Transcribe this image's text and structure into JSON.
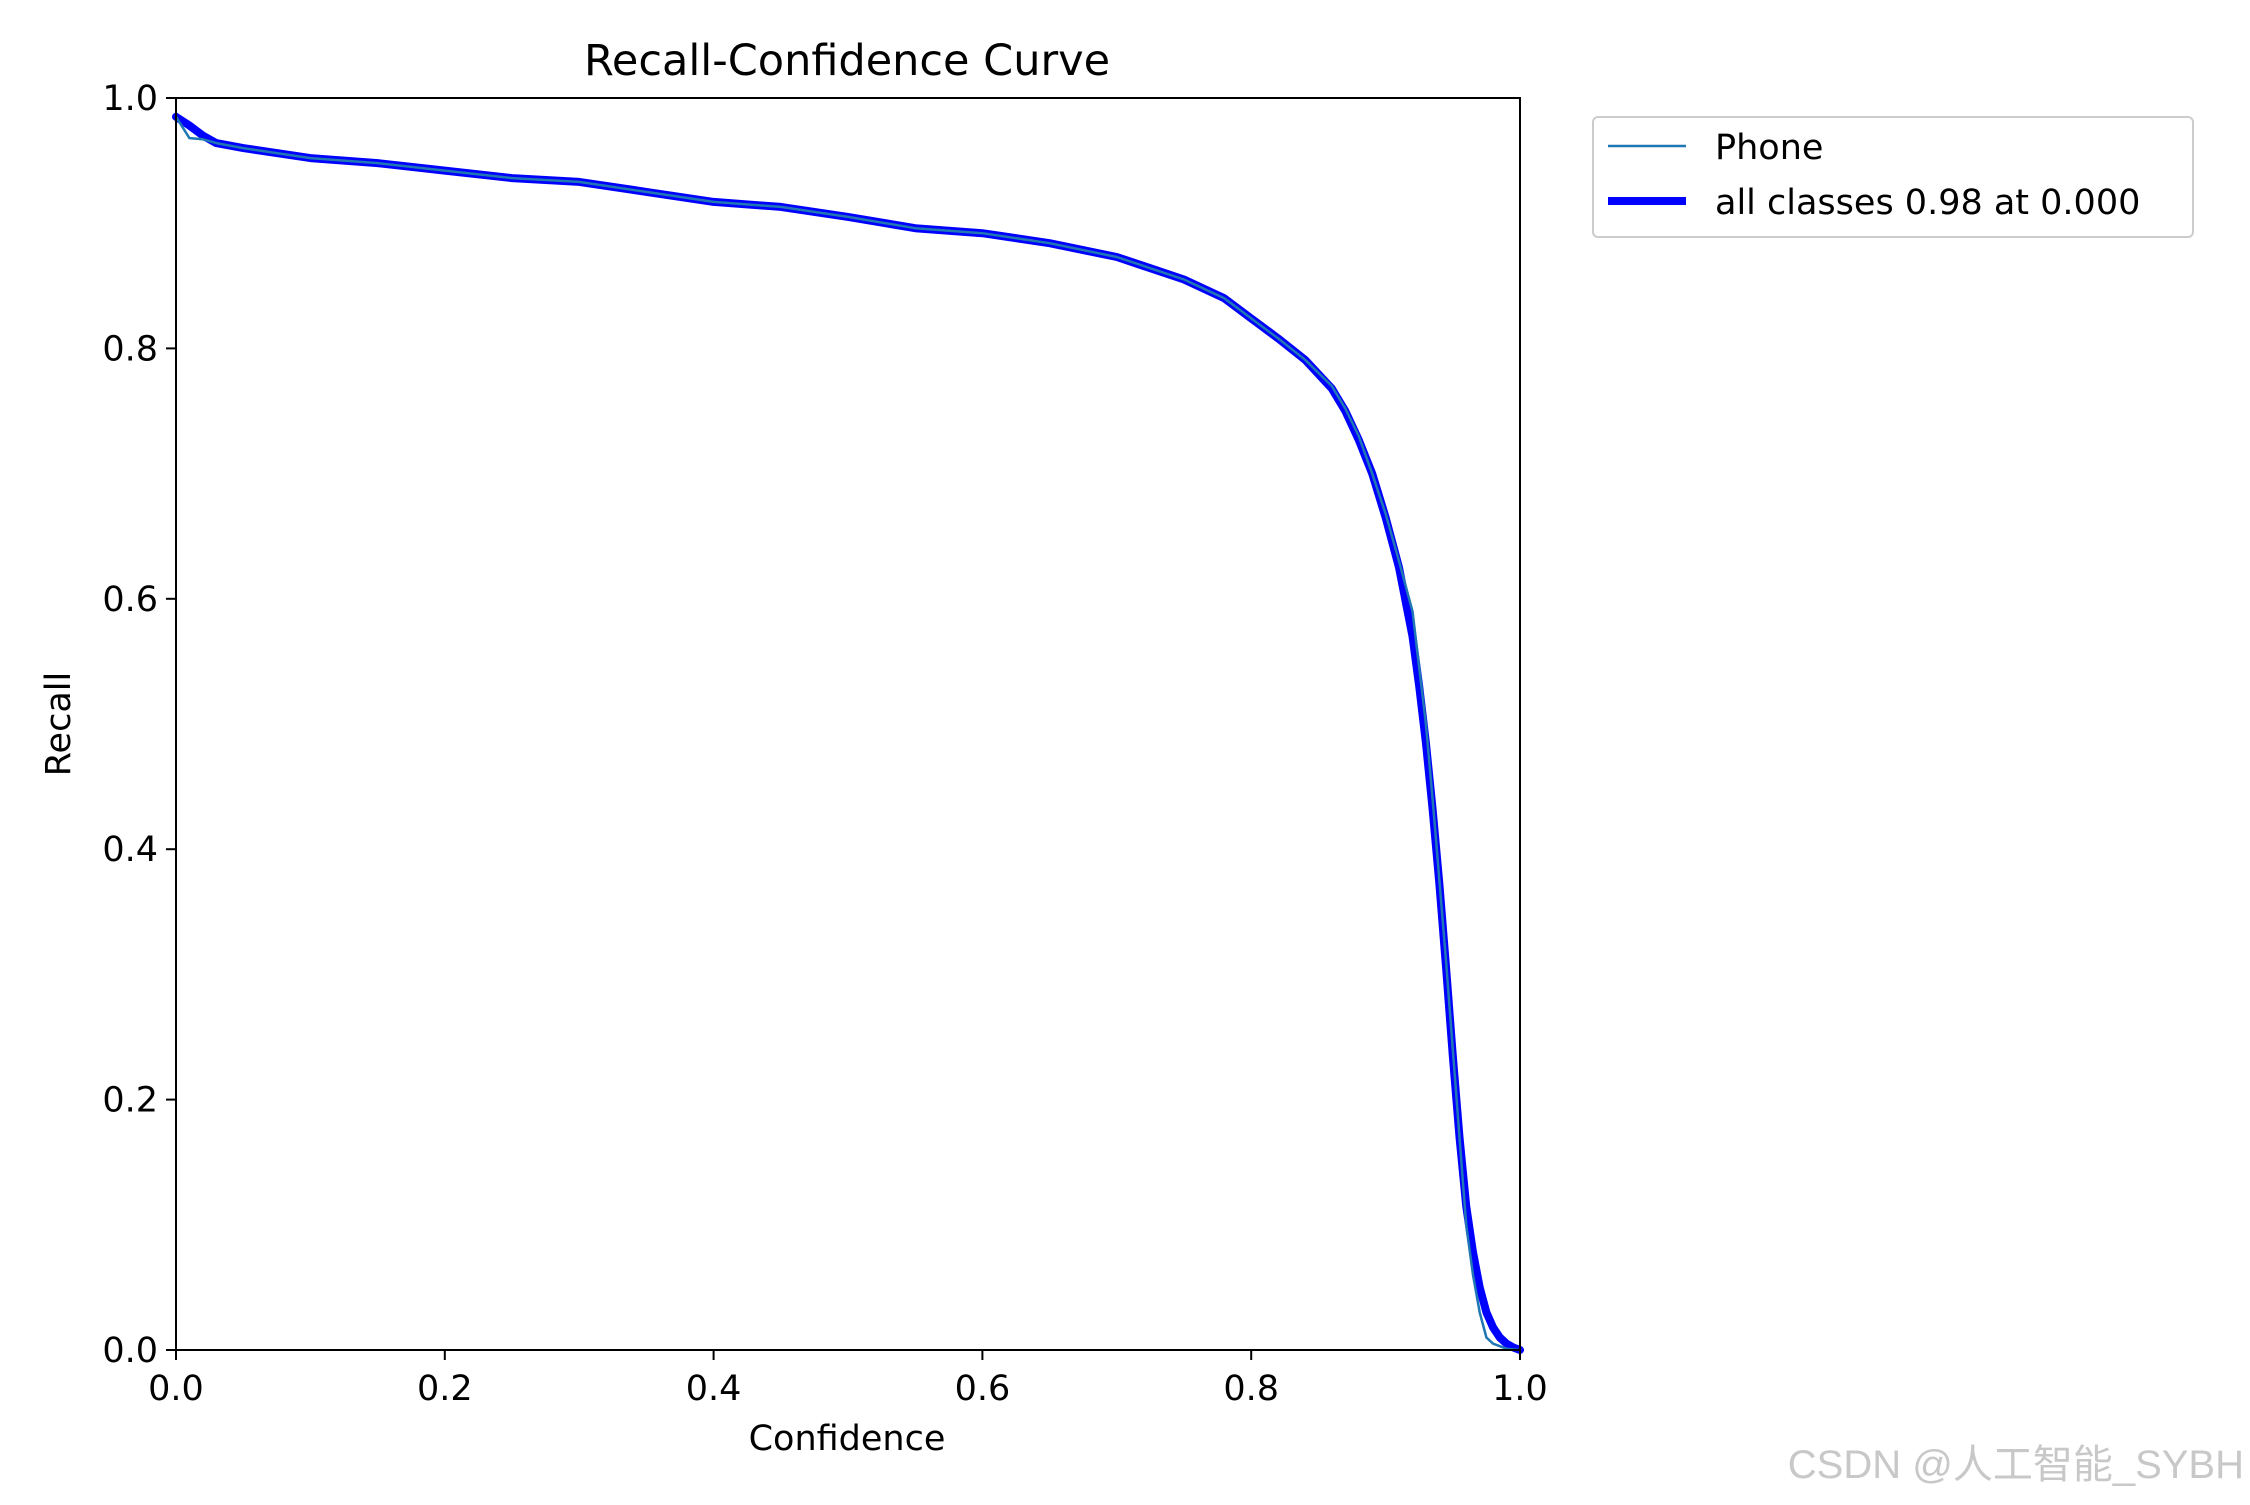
{
  "watermark": "CSDN @人工智能_SYBH",
  "chart_data": {
    "type": "line",
    "title": "Recall-Confidence Curve",
    "xlabel": "Confidence",
    "ylabel": "Recall",
    "xlim": [
      0.0,
      1.0
    ],
    "ylim": [
      0.0,
      1.0
    ],
    "xticks": [
      0.0,
      0.2,
      0.4,
      0.6,
      0.8,
      1.0
    ],
    "yticks": [
      0.0,
      0.2,
      0.4,
      0.6,
      0.8,
      1.0
    ],
    "xtick_labels": [
      "0.0",
      "0.2",
      "0.4",
      "0.6",
      "0.8",
      "1.0"
    ],
    "ytick_labels": [
      "0.0",
      "0.2",
      "0.4",
      "0.6",
      "0.8",
      "1.0"
    ],
    "grid": false,
    "legend": "outside upper right",
    "series": [
      {
        "name": "Phone",
        "color": "#1f77b4",
        "style": "thin",
        "x": [
          0.0,
          0.01,
          0.02,
          0.03,
          0.05,
          0.1,
          0.15,
          0.2,
          0.25,
          0.3,
          0.35,
          0.4,
          0.45,
          0.5,
          0.55,
          0.6,
          0.65,
          0.7,
          0.75,
          0.78,
          0.8,
          0.82,
          0.84,
          0.86,
          0.87,
          0.88,
          0.89,
          0.9,
          0.91,
          0.92,
          0.925,
          0.93,
          0.935,
          0.94,
          0.945,
          0.95,
          0.955,
          0.96,
          0.965,
          0.97,
          0.975,
          0.98,
          0.99,
          1.0
        ],
        "y": [
          0.985,
          0.968,
          0.967,
          0.964,
          0.96,
          0.952,
          0.948,
          0.942,
          0.936,
          0.933,
          0.925,
          0.917,
          0.913,
          0.905,
          0.896,
          0.892,
          0.884,
          0.873,
          0.855,
          0.84,
          0.824,
          0.808,
          0.791,
          0.77,
          0.752,
          0.73,
          0.7,
          0.668,
          0.63,
          0.59,
          0.545,
          0.5,
          0.44,
          0.375,
          0.31,
          0.24,
          0.17,
          0.1,
          0.06,
          0.03,
          0.01,
          0.005,
          0.001,
          0.0
        ]
      },
      {
        "name": "all classes 0.98 at 0.000",
        "color": "#0000ff",
        "style": "thick",
        "x": [
          0.0,
          0.01,
          0.02,
          0.03,
          0.05,
          0.1,
          0.15,
          0.2,
          0.25,
          0.3,
          0.35,
          0.4,
          0.45,
          0.5,
          0.55,
          0.6,
          0.65,
          0.7,
          0.75,
          0.78,
          0.8,
          0.82,
          0.84,
          0.86,
          0.87,
          0.88,
          0.89,
          0.9,
          0.91,
          0.92,
          0.925,
          0.93,
          0.935,
          0.94,
          0.945,
          0.95,
          0.955,
          0.96,
          0.965,
          0.97,
          0.975,
          0.98,
          0.985,
          0.99,
          0.995,
          1.0
        ],
        "y": [
          0.985,
          0.978,
          0.97,
          0.964,
          0.96,
          0.952,
          0.948,
          0.942,
          0.936,
          0.933,
          0.925,
          0.917,
          0.913,
          0.905,
          0.896,
          0.892,
          0.884,
          0.873,
          0.855,
          0.84,
          0.824,
          0.808,
          0.791,
          0.768,
          0.75,
          0.727,
          0.7,
          0.665,
          0.625,
          0.57,
          0.53,
          0.485,
          0.432,
          0.372,
          0.305,
          0.235,
          0.17,
          0.115,
          0.078,
          0.05,
          0.03,
          0.018,
          0.01,
          0.005,
          0.002,
          0.0
        ]
      }
    ]
  }
}
